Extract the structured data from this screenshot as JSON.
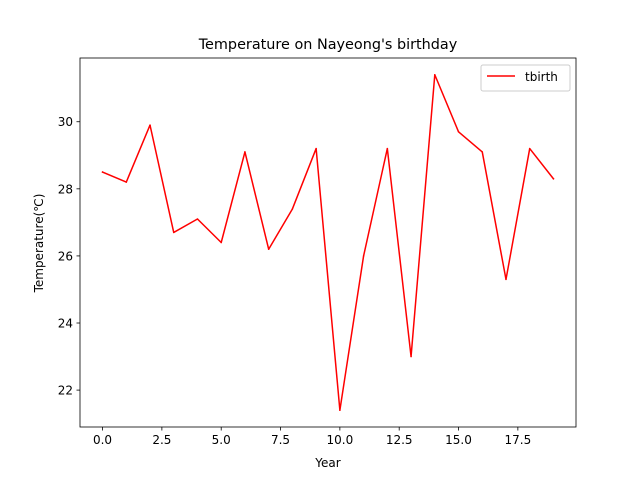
{
  "chart_data": {
    "type": "line",
    "title": "Temperature on Nayeong's birthday",
    "xlabel": "Year",
    "ylabel": "Temperature(℃)",
    "xlim": [
      -0.95,
      19.95
    ],
    "ylim": [
      20.9,
      31.9
    ],
    "x_ticks": [
      0,
      2.5,
      5,
      7.5,
      10,
      12.5,
      15,
      17.5
    ],
    "x_tick_labels": [
      "0.0",
      "2.5",
      "5.0",
      "7.5",
      "10.0",
      "12.5",
      "15.0",
      "17.5"
    ],
    "y_ticks": [
      22,
      24,
      26,
      28,
      30
    ],
    "y_tick_labels": [
      "22",
      "24",
      "26",
      "28",
      "30"
    ],
    "grid": false,
    "legend_position": "top-right",
    "series": [
      {
        "name": "tbirth",
        "color": "#ff0000",
        "x": [
          0,
          1,
          2,
          3,
          4,
          5,
          6,
          7,
          8,
          9,
          10,
          11,
          12,
          13,
          14,
          15,
          16,
          17,
          18,
          19
        ],
        "y": [
          28.5,
          28.2,
          29.9,
          26.7,
          27.1,
          26.4,
          29.1,
          26.2,
          27.4,
          29.2,
          21.4,
          26.0,
          29.2,
          23.0,
          31.4,
          29.7,
          29.1,
          25.3,
          29.2,
          28.3
        ]
      }
    ]
  }
}
